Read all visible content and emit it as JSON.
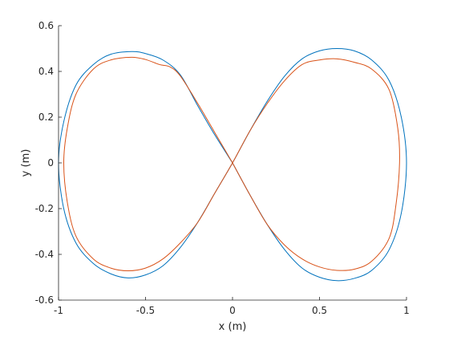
{
  "chart_data": {
    "type": "line",
    "title": "",
    "xlabel": "x (m)",
    "ylabel": "y (m)",
    "xlim": [
      -1,
      1
    ],
    "ylim": [
      -0.6,
      0.6
    ],
    "xticks": [
      "-1",
      "-0.5",
      "0",
      "0.5",
      "1"
    ],
    "yticks": [
      "-0.6",
      "-0.4",
      "-0.2",
      "0",
      "0.2",
      "0.4",
      "0.6"
    ],
    "grid": false,
    "legend": "none",
    "series": [
      {
        "color": "#0072BD",
        "points": [
          [
            0,
            0
          ],
          [
            -0.1,
            0.12
          ],
          [
            -0.2,
            0.25
          ],
          [
            -0.3,
            0.385
          ],
          [
            -0.4,
            0.45
          ],
          [
            -0.5,
            0.478
          ],
          [
            -0.58,
            0.487
          ],
          [
            -0.7,
            0.475
          ],
          [
            -0.8,
            0.43
          ],
          [
            -0.9,
            0.34
          ],
          [
            -0.97,
            0.18
          ],
          [
            -1.0,
            0
          ],
          [
            -0.97,
            -0.2
          ],
          [
            -0.9,
            -0.35
          ],
          [
            -0.8,
            -0.44
          ],
          [
            -0.7,
            -0.485
          ],
          [
            -0.6,
            -0.503
          ],
          [
            -0.5,
            -0.49
          ],
          [
            -0.4,
            -0.45
          ],
          [
            -0.3,
            -0.37
          ],
          [
            -0.2,
            -0.26
          ],
          [
            -0.1,
            -0.13
          ],
          [
            0,
            0
          ],
          [
            0.1,
            0.14
          ],
          [
            0.2,
            0.27
          ],
          [
            0.3,
            0.38
          ],
          [
            0.4,
            0.455
          ],
          [
            0.5,
            0.49
          ],
          [
            0.6,
            0.5
          ],
          [
            0.7,
            0.49
          ],
          [
            0.8,
            0.45
          ],
          [
            0.9,
            0.36
          ],
          [
            0.97,
            0.2
          ],
          [
            1.0,
            0
          ],
          [
            0.97,
            -0.22
          ],
          [
            0.9,
            -0.38
          ],
          [
            0.8,
            -0.47
          ],
          [
            0.7,
            -0.505
          ],
          [
            0.6,
            -0.515
          ],
          [
            0.5,
            -0.5
          ],
          [
            0.4,
            -0.46
          ],
          [
            0.3,
            -0.38
          ],
          [
            0.2,
            -0.27
          ],
          [
            0.1,
            -0.14
          ],
          [
            0,
            0
          ]
        ]
      },
      {
        "color": "#D95319",
        "points": [
          [
            0,
            0
          ],
          [
            -0.1,
            0.13
          ],
          [
            -0.2,
            0.26
          ],
          [
            -0.3,
            0.38
          ],
          [
            -0.36,
            0.42
          ],
          [
            -0.42,
            0.43
          ],
          [
            -0.5,
            0.452
          ],
          [
            -0.58,
            0.462
          ],
          [
            -0.7,
            0.45
          ],
          [
            -0.8,
            0.41
          ],
          [
            -0.9,
            0.3
          ],
          [
            -0.95,
            0.15
          ],
          [
            -0.97,
            0
          ],
          [
            -0.95,
            -0.17
          ],
          [
            -0.9,
            -0.32
          ],
          [
            -0.8,
            -0.42
          ],
          [
            -0.7,
            -0.46
          ],
          [
            -0.6,
            -0.472
          ],
          [
            -0.5,
            -0.46
          ],
          [
            -0.4,
            -0.42
          ],
          [
            -0.3,
            -0.35
          ],
          [
            -0.2,
            -0.26
          ],
          [
            -0.1,
            -0.13
          ],
          [
            0,
            0
          ],
          [
            0.1,
            0.14
          ],
          [
            0.2,
            0.26
          ],
          [
            0.3,
            0.36
          ],
          [
            0.4,
            0.43
          ],
          [
            0.5,
            0.45
          ],
          [
            0.6,
            0.455
          ],
          [
            0.7,
            0.44
          ],
          [
            0.8,
            0.41
          ],
          [
            0.9,
            0.32
          ],
          [
            0.95,
            0.15
          ],
          [
            0.96,
            0
          ],
          [
            0.94,
            -0.18
          ],
          [
            0.9,
            -0.33
          ],
          [
            0.8,
            -0.43
          ],
          [
            0.7,
            -0.465
          ],
          [
            0.6,
            -0.47
          ],
          [
            0.5,
            -0.455
          ],
          [
            0.4,
            -0.42
          ],
          [
            0.3,
            -0.36
          ],
          [
            0.2,
            -0.27
          ],
          [
            0.1,
            -0.14
          ],
          [
            0,
            0
          ]
        ]
      }
    ]
  }
}
